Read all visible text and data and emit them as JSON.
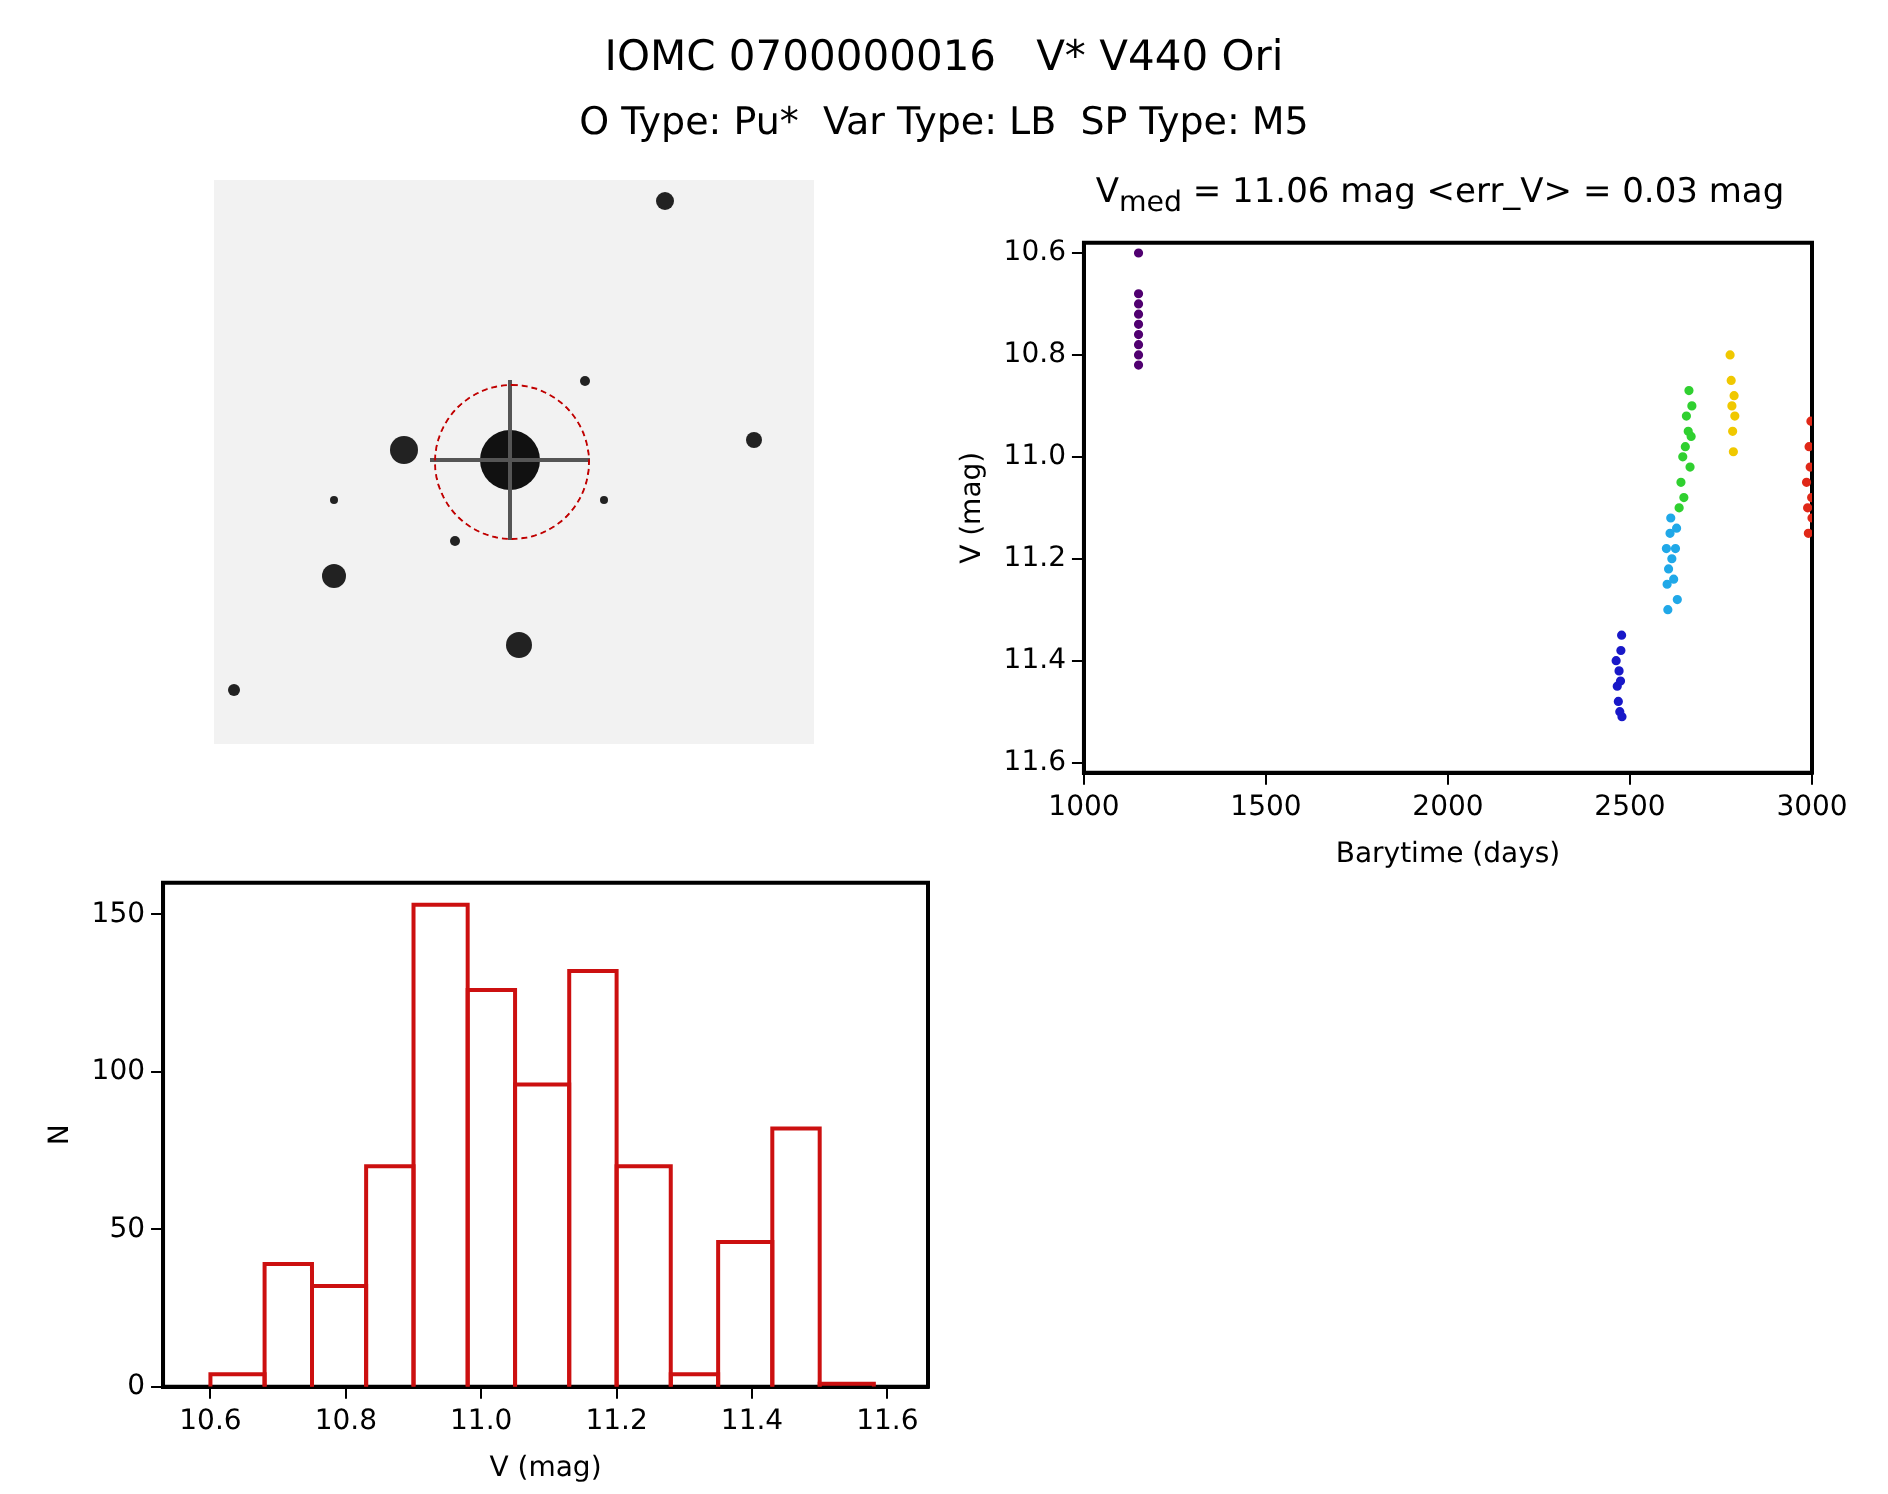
{
  "chart_data": [
    {
      "type": "other",
      "title": "IOMC 0700000016   V* V440 Ori",
      "subtitle": "O Type: Pu*  Var Type: LB  SP Type: M5"
    },
    {
      "type": "scatter",
      "title": "V$_{med}$ = 11.06 mag <err_V> = 0.03 mag",
      "xlabel": "Barytime (days)",
      "ylabel": "V (mag)",
      "xlim": [
        1000,
        3000
      ],
      "ylim": [
        11.62,
        10.58
      ],
      "xticks": [
        1000,
        1500,
        2000,
        2500,
        3000
      ],
      "yticks": [
        {
          "value": 10.6,
          "label": "10.6"
        },
        {
          "value": 10.8,
          "label": "10.8"
        },
        {
          "value": 11,
          "label": "11.0"
        },
        {
          "value": 11.2,
          "label": "11.2"
        },
        {
          "value": 11.4,
          "label": "11.4"
        },
        {
          "value": 11.6,
          "label": "11.6"
        }
      ],
      "marker": "circle",
      "series": [
        {
          "color": "#500070",
          "x": [
            1150,
            1150,
            1150,
            1150,
            1150,
            1150,
            1150,
            1150,
            1150
          ],
          "values": [
            10.6,
            10.68,
            10.7,
            10.72,
            10.74,
            10.76,
            10.78,
            10.8,
            10.82
          ]
        },
        {
          "color": "#1818c8",
          "x": [
            2462,
            2465,
            2468,
            2470,
            2472,
            2474,
            2475,
            2477,
            2478
          ],
          "values": [
            11.4,
            11.45,
            11.48,
            11.42,
            11.5,
            11.44,
            11.38,
            11.35,
            11.51
          ]
        },
        {
          "color": "#20a8e8",
          "x": [
            2600,
            2602,
            2604,
            2606,
            2610,
            2612,
            2615,
            2620,
            2625,
            2628,
            2630
          ],
          "values": [
            11.18,
            11.25,
            11.3,
            11.22,
            11.15,
            11.12,
            11.2,
            11.24,
            11.18,
            11.14,
            11.28
          ]
        },
        {
          "color": "#30d030",
          "x": [
            2635,
            2640,
            2645,
            2648,
            2652,
            2655,
            2660,
            2662,
            2665,
            2668,
            2670
          ],
          "values": [
            11.1,
            11.05,
            11.0,
            11.08,
            10.98,
            10.92,
            10.95,
            10.87,
            11.02,
            10.96,
            10.9
          ]
        },
        {
          "color": "#f0c800",
          "x": [
            2775,
            2778,
            2780,
            2782,
            2784,
            2786,
            2788
          ],
          "values": [
            10.8,
            10.85,
            10.9,
            10.95,
            10.99,
            10.88,
            10.92
          ]
        },
        {
          "color": "#e02818",
          "x": [
            2985,
            2988,
            2990,
            2992,
            2995,
            2997,
            2999,
            3000
          ],
          "values": [
            11.05,
            11.1,
            11.15,
            10.98,
            11.02,
            10.93,
            11.08,
            11.12
          ]
        }
      ]
    },
    {
      "type": "histogram",
      "xlabel": "V (mag)",
      "ylabel": "N",
      "color": "#cc1010",
      "xlim": [
        10.53,
        11.66
      ],
      "ylim": [
        0,
        160
      ],
      "xticks": [
        {
          "value": 10.6,
          "label": "10.6"
        },
        {
          "value": 10.8,
          "label": "10.8"
        },
        {
          "value": 11,
          "label": "11.0"
        },
        {
          "value": 11.2,
          "label": "11.2"
        },
        {
          "value": 11.4,
          "label": "11.4"
        },
        {
          "value": 11.6,
          "label": "11.6"
        }
      ],
      "yticks": [
        0,
        50,
        100,
        150
      ],
      "bins": [
        10.6,
        10.68,
        10.75,
        10.83,
        10.9,
        10.98,
        11.05,
        11.13,
        11.2,
        11.28,
        11.35,
        11.43,
        11.5,
        11.58
      ],
      "values": [
        4,
        39,
        32,
        70,
        153,
        126,
        96,
        132,
        70,
        4,
        46,
        82,
        1
      ]
    }
  ]
}
